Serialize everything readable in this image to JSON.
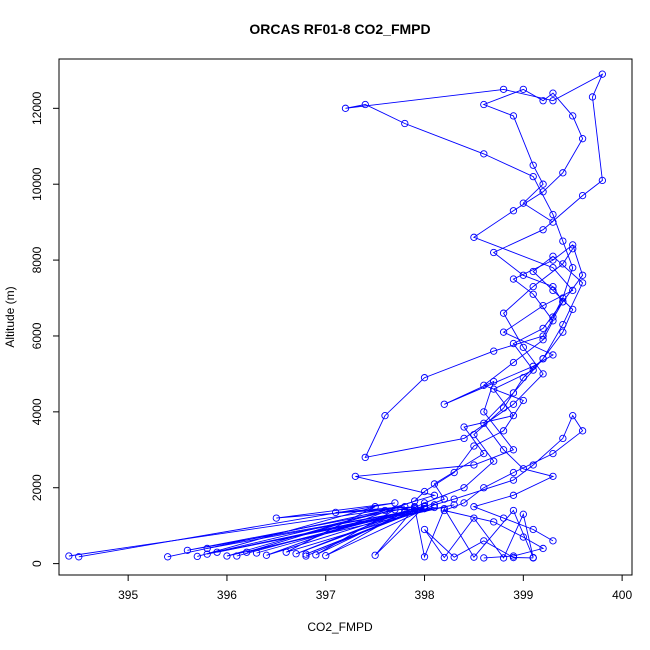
{
  "chart_data": {
    "type": "line",
    "title": "ORCAS RF01-8 CO2_FMPD",
    "xlabel": "CO2_FMPD",
    "ylabel": "Altitude (m)",
    "xlim": [
      394.3,
      400.1
    ],
    "ylim": [
      -300,
      13300
    ],
    "xticks": [
      395,
      396,
      397,
      398,
      399,
      400
    ],
    "yticks": [
      0,
      2000,
      4000,
      6000,
      8000,
      10000,
      12000
    ],
    "series_color": "#0000ff",
    "markers": "open-circle",
    "grid": false,
    "series": [
      {
        "x": [
          394.4,
          397.8,
          397.1,
          398.0,
          395.8,
          397.9,
          396.2,
          398.1,
          397.3,
          398.5,
          398.9,
          398.6,
          398.7,
          398.2,
          399.1,
          399.3,
          398.8,
          399.2,
          399.5,
          399.3,
          398.5,
          398.9,
          399.2,
          399.4,
          399.6,
          399.5,
          399.3,
          399.2,
          399.0,
          398.6,
          398.9,
          399.1,
          399.2,
          399.0,
          399.3
        ],
        "y": [
          200,
          1500,
          1350,
          1450,
          400,
          1400,
          300,
          1800,
          2300,
          2600,
          3000,
          4000,
          4800,
          4200,
          5200,
          5500,
          6100,
          6800,
          7200,
          7800,
          8600,
          9300,
          9800,
          10300,
          11200,
          11800,
          12400,
          12200,
          12500,
          12100,
          11800,
          10500,
          10000,
          9500,
          9000
        ]
      },
      {
        "x": [
          394.5,
          397.7,
          396.5,
          397.9,
          395.6,
          398.0,
          396.8,
          398.2,
          398.1,
          398.6,
          398.4,
          398.9,
          398.7,
          399.1,
          398.9,
          399.2,
          399.4,
          399.3,
          399.0,
          398.7,
          399.2,
          399.6,
          399.8,
          399.7,
          399.8,
          399.3,
          398.8,
          397.2,
          397.4,
          397.8,
          398.6,
          399.1,
          399.3,
          399.4,
          399.5,
          399.4,
          399.3
        ],
        "y": [
          180,
          1600,
          1200,
          1500,
          350,
          1450,
          250,
          1700,
          2100,
          2900,
          3600,
          3900,
          4600,
          5100,
          5800,
          6200,
          6900,
          7300,
          7600,
          8200,
          8800,
          9700,
          10100,
          12300,
          12900,
          12200,
          12500,
          12000,
          12100,
          11600,
          10800,
          10200,
          9200,
          8500,
          7800,
          7000,
          6500
        ]
      },
      {
        "x": [
          395.4,
          397.6,
          396.0,
          398.3,
          395.9,
          397.8,
          396.4,
          397.9,
          398.0,
          398.3,
          398.5,
          398.8,
          399.0,
          398.6,
          398.9,
          399.2,
          399.3,
          399.1,
          398.9,
          399.3,
          399.5,
          399.6,
          399.4,
          399.2,
          398.7,
          398.0,
          397.6,
          397.4,
          398.4,
          398.9,
          399.2,
          399.0,
          398.8,
          399.1,
          399.4,
          399.5
        ],
        "y": [
          180,
          1400,
          200,
          1550,
          300,
          1350,
          220,
          1650,
          1900,
          2400,
          3100,
          3500,
          4300,
          4700,
          5300,
          5900,
          6400,
          7100,
          7500,
          8000,
          8400,
          7600,
          6900,
          6000,
          5600,
          4900,
          3900,
          2800,
          3300,
          4200,
          5000,
          5700,
          6600,
          7300,
          7900,
          8300
        ]
      },
      {
        "x": [
          395.7,
          397.5,
          396.6,
          398.1,
          395.8,
          397.7,
          396.9,
          398.0,
          398.4,
          398.7,
          398.5,
          398.8,
          399.0,
          399.2,
          399.4,
          399.5,
          399.3,
          399.1,
          399.3,
          399.6,
          399.4,
          399.2,
          398.9,
          398.6,
          398.8,
          399.0,
          399.3,
          398.9,
          398.5,
          398.8,
          399.1,
          399.3
        ],
        "y": [
          190,
          1500,
          300,
          1480,
          250,
          1420,
          230,
          1600,
          2000,
          2700,
          3400,
          4100,
          4900,
          5400,
          6100,
          6700,
          7200,
          7700,
          8100,
          7400,
          6300,
          5400,
          4500,
          3700,
          3000,
          2500,
          2300,
          1800,
          1500,
          1200,
          900,
          600
        ]
      },
      {
        "x": [
          396.1,
          397.9,
          396.3,
          398.0,
          396.7,
          397.8,
          397.0,
          398.1,
          398.3,
          398.9,
          399.1,
          399.4,
          399.5,
          399.6,
          399.3,
          398.9,
          398.6,
          398.4,
          398.2,
          398.7,
          399.0,
          399.2,
          398.9,
          398.6
        ],
        "y": [
          200,
          1450,
          280,
          1520,
          260,
          1380,
          210,
          1550,
          1700,
          2200,
          2600,
          3300,
          3900,
          3500,
          2900,
          2400,
          2000,
          1600,
          1400,
          1100,
          700,
          400,
          200,
          150
        ]
      },
      {
        "x": [
          396.8,
          398.0,
          397.5,
          397.9,
          398.0,
          398.2,
          398.5,
          398.9,
          399.1,
          399.0,
          398.8,
          398.5,
          398.2,
          398.0,
          398.3,
          398.6,
          398.9,
          399.1
        ],
        "y": [
          200,
          1500,
          220,
          1480,
          180,
          1450,
          170,
          1400,
          160,
          1300,
          150,
          1200,
          160,
          900,
          170,
          600,
          160,
          150
        ]
      }
    ]
  }
}
